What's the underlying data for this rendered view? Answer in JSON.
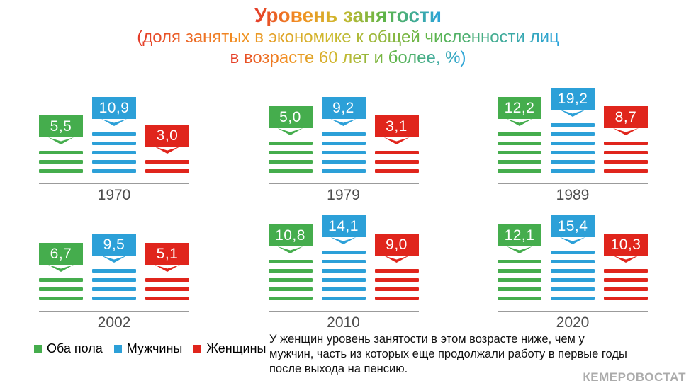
{
  "header": {
    "title": "Уровень занятости",
    "subtitle_line1": "(доля занятых в экономике к общей численности лиц",
    "subtitle_line2": "в возрасте 60 лет и более, %)"
  },
  "legend": {
    "items": [
      {
        "label": "Оба пола",
        "color": "#45ad4d"
      },
      {
        "label": "Мужчины",
        "color": "#2ca0d8"
      },
      {
        "label": "Женщины",
        "color": "#e0251c"
      }
    ]
  },
  "note": "У женщин уровень занятости в этом возрасте ниже, чем у мужчин, часть из которых еще продолжали работу в первые годы после выхода на пенсию.",
  "watermark": "КЕМЕРОВОСТАТ",
  "chart_data": {
    "type": "bar",
    "title": "Уровень занятости",
    "subtitle": "(доля занятых в экономике к общей численности лиц в возрасте 60 лет и более, %)",
    "unit": "%",
    "grid": false,
    "legend_position": "bottom-left",
    "categories": [
      "1970",
      "1979",
      "1989",
      "2002",
      "2010",
      "2020"
    ],
    "series": [
      {
        "name": "Оба пола",
        "key": "both-sexes",
        "color": "#45ad4d",
        "values": [
          5.5,
          5.0,
          12.2,
          6.7,
          10.8,
          12.1
        ],
        "labels": [
          "5,5",
          "5,0",
          "12,2",
          "6,7",
          "10,8",
          "12,1"
        ]
      },
      {
        "name": "Мужчины",
        "key": "men",
        "color": "#2ca0d8",
        "values": [
          10.9,
          9.2,
          19.2,
          9.5,
          14.1,
          15.4
        ],
        "labels": [
          "10,9",
          "9,2",
          "19,2",
          "9,5",
          "14,1",
          "15,4"
        ]
      },
      {
        "name": "Женщины",
        "key": "women",
        "color": "#e0251c",
        "values": [
          3.0,
          3.1,
          8.7,
          5.1,
          9.0,
          10.3
        ],
        "labels": [
          "3,0",
          "3,1",
          "8,7",
          "5,1",
          "9,0",
          "10,3"
        ]
      }
    ],
    "stripe_counts": [
      [
        3,
        5,
        2
      ],
      [
        4,
        5,
        3
      ],
      [
        5,
        6,
        4
      ],
      [
        3,
        4,
        3
      ],
      [
        5,
        6,
        4
      ],
      [
        5,
        6,
        4
      ]
    ]
  },
  "colors": {
    "year_label": "#4d4d4d",
    "baseline": "#9b9b9b",
    "note_text": "#111111",
    "watermark": "#ababab",
    "title_gradient": [
      "#e43a28",
      "#f29022",
      "#cdba2e",
      "#5bb44a",
      "#29a3dc"
    ]
  }
}
